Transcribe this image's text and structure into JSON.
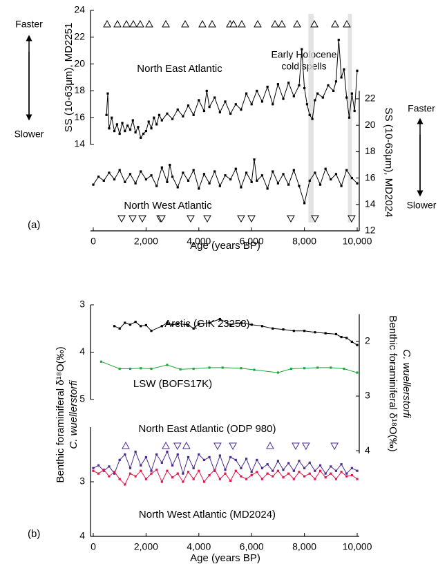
{
  "chart_data": [
    {
      "type": "line",
      "panel_label": "(a)",
      "xlabel": "Age (years BP)",
      "xlim": [
        0,
        10000
      ],
      "xticks": [
        0,
        {
          "value": 2000,
          "label": "2,000"
        },
        {
          "value": 4000,
          "label": "4,000"
        },
        {
          "value": 6000,
          "label": "6,000"
        },
        {
          "value": 8000,
          "label": "8,000"
        },
        {
          "value": 10000,
          "label": "10,000"
        }
      ],
      "ylim": [
        14,
        24
      ],
      "yticks": [
        14,
        16,
        18,
        20,
        22,
        24
      ],
      "ylabel": [
        "SS (10-63μm), MD2251"
      ],
      "y2lim": [
        12,
        22.6
      ],
      "y2ticks": [
        12,
        14,
        16,
        18,
        20,
        22
      ],
      "y2label": [
        "SS (10-63μm), MD2024"
      ],
      "arrows_left": [
        "Faster",
        "Slower"
      ],
      "arrows_right": [
        "Faster",
        "Slower"
      ],
      "annotations": [
        "Early Holocene",
        "cold spells"
      ],
      "shaded": [
        [
          8150,
          8350
        ],
        [
          9650,
          9800
        ]
      ],
      "series": [
        {
          "name": "North East Atlantic",
          "color": "#000000",
          "x": [
            500,
            550,
            600,
            700,
            800,
            900,
            1000,
            1100,
            1200,
            1300,
            1400,
            1500,
            1600,
            1700,
            1800,
            1900,
            2000,
            2100,
            2200,
            2300,
            2400,
            2500,
            2600,
            2800,
            3000,
            3200,
            3400,
            3600,
            3800,
            4000,
            4200,
            4300,
            4400,
            4600,
            4800,
            5000,
            5200,
            5400,
            5600,
            5800,
            6000,
            6200,
            6400,
            6600,
            6800,
            7000,
            7200,
            7400,
            7600,
            7800,
            7900,
            8000,
            8100,
            8200,
            8300,
            8400,
            8500,
            8700,
            8900,
            9100,
            9200,
            9300,
            9400,
            9500,
            9600,
            9700,
            9800,
            9900,
            10000
          ],
          "values": [
            16.2,
            17.8,
            15.2,
            16.0,
            15.0,
            15.5,
            14.8,
            15.6,
            15.0,
            15.4,
            15.1,
            15.8,
            14.9,
            15.3,
            14.5,
            14.8,
            15.0,
            15.7,
            15.2,
            16.0,
            15.5,
            16.2,
            15.8,
            16.3,
            15.9,
            16.6,
            16.1,
            16.9,
            16.2,
            17.3,
            16.5,
            18.0,
            16.8,
            17.5,
            16.4,
            17.2,
            16.3,
            17.0,
            16.6,
            17.8,
            17.0,
            18.0,
            17.2,
            18.3,
            17.0,
            18.5,
            17.4,
            18.6,
            17.6,
            18.4,
            21.1,
            18.2,
            17.0,
            16.2,
            15.9,
            17.3,
            17.8,
            17.5,
            18.4,
            18.0,
            18.7,
            21.8,
            19.0,
            19.6,
            17.5,
            16.0,
            17.8,
            16.5,
            19.5
          ]
        },
        {
          "name": "North West Atlantic",
          "color": "#000000",
          "axis": "y2",
          "x": [
            0,
            200,
            400,
            600,
            800,
            1000,
            1200,
            1400,
            1600,
            1800,
            2000,
            2200,
            2400,
            2600,
            2800,
            2900,
            3000,
            3200,
            3400,
            3600,
            3800,
            4000,
            4200,
            4400,
            4600,
            4800,
            5000,
            5200,
            5400,
            5600,
            5800,
            6000,
            6100,
            6200,
            6400,
            6600,
            6800,
            7000,
            7200,
            7400,
            7600,
            7800,
            8000,
            8200,
            8400,
            8600,
            8800,
            9000,
            9200,
            9400,
            9600,
            9800,
            10000
          ],
          "values": [
            15.5,
            16.1,
            15.8,
            16.4,
            15.9,
            16.6,
            15.7,
            16.3,
            15.6,
            16.5,
            15.9,
            16.2,
            15.4,
            16.8,
            15.7,
            17.0,
            16.1,
            15.3,
            16.4,
            15.8,
            16.6,
            15.2,
            16.3,
            15.6,
            16.5,
            15.4,
            16.2,
            15.9,
            16.7,
            15.3,
            16.4,
            15.7,
            17.4,
            15.8,
            16.2,
            15.2,
            16.5,
            15.6,
            16.3,
            15.5,
            16.6,
            15.4,
            14.1,
            15.8,
            16.4,
            15.5,
            16.7,
            15.9,
            16.3,
            15.4,
            16.6,
            16.0,
            15.6
          ]
        }
      ],
      "event_markers": [
        {
          "symbol": "up",
          "color": "#000000",
          "x": [
            524,
            916,
            1257,
            1518,
            1780,
            2120,
            2749,
            3482,
            4136,
            4503,
            5183,
            5314,
            5628,
            6230,
            6885,
            7147,
            7723,
            8377,
            9162,
            9607
          ]
        },
        {
          "symbol": "down",
          "color": "#000000",
          "x": [
            1073,
            1492,
            1859,
            2539,
            2592,
            3691,
            4319,
            5602,
            5995,
            7487,
            8403,
            9790
          ]
        }
      ]
    },
    {
      "type": "line",
      "panel_label": "(b)",
      "xlabel": "Age (years BP)",
      "inverted": true,
      "xlim": [
        0,
        10000
      ],
      "xticks": [
        0,
        {
          "value": 2000,
          "label": "2,000"
        },
        {
          "value": 4000,
          "label": "4,000"
        },
        {
          "value": 6000,
          "label": "6,000"
        },
        {
          "value": 8000,
          "label": "8,000"
        },
        {
          "value": 10000,
          "label": "10,000"
        }
      ],
      "ylim": [
        2,
        4
      ],
      "yticks": [
        3,
        4
      ],
      "y3lim": [
        3,
        5
      ],
      "y3ticks": [
        3,
        4,
        5
      ],
      "ylabel": [
        "Benthic foraminiferal δ¹⁸O(‰)",
        "C. wuellerstorfi"
      ],
      "y2lim": [
        1.5,
        4.05
      ],
      "y2ticks": [
        2,
        3,
        4
      ],
      "y2label": [
        "Benthic foraminiferal δ¹⁸O(‰)",
        "C. wuellerstorfi"
      ],
      "series": [
        {
          "name": "Arctic (GIK 23258)",
          "color": "#000000",
          "axis": "y3",
          "x": [
            800,
            1000,
            1200,
            1400,
            1600,
            1800,
            2000,
            2200,
            2600,
            2800,
            3000,
            3200,
            3600,
            3800,
            4000,
            4400,
            4800,
            5200,
            5600,
            6000,
            6400,
            6800,
            7200,
            7600,
            8000,
            8400,
            8800,
            9200,
            9400,
            9600,
            9800,
            10000
          ],
          "values": [
            3.45,
            3.5,
            3.38,
            3.42,
            3.36,
            3.45,
            3.43,
            3.55,
            3.45,
            3.38,
            3.42,
            3.4,
            3.42,
            3.5,
            3.4,
            3.38,
            3.3,
            3.42,
            3.38,
            3.42,
            3.45,
            3.5,
            3.52,
            3.55,
            3.55,
            3.58,
            3.6,
            3.62,
            3.68,
            3.7,
            3.78,
            3.85
          ]
        },
        {
          "name": "LSW (BOFS17K)",
          "color": "#1fa83a",
          "axis": "y2",
          "x": [
            300,
            1000,
            1400,
            1800,
            2200,
            2800,
            3300,
            3800,
            4400,
            4900,
            5600,
            6100,
            7000,
            7500,
            8000,
            8500,
            9000,
            9500,
            10000
          ],
          "values": [
            2.37,
            2.5,
            2.5,
            2.49,
            2.5,
            2.43,
            2.51,
            2.5,
            2.48,
            2.48,
            2.49,
            2.52,
            2.57,
            2.5,
            2.49,
            2.48,
            2.48,
            2.5,
            2.57
          ]
        },
        {
          "name": "North East Atlantic (ODP 980)",
          "color": "#4b2a8c",
          "x": [
            0,
            200,
            400,
            600,
            800,
            1000,
            1200,
            1400,
            1600,
            1800,
            2000,
            2200,
            2400,
            2600,
            2800,
            3000,
            3200,
            3400,
            3600,
            3800,
            4000,
            4200,
            4400,
            4600,
            4800,
            5000,
            5200,
            5400,
            5600,
            5800,
            6000,
            6200,
            6400,
            6600,
            6800,
            7000,
            7200,
            7400,
            7600,
            7800,
            8000,
            8200,
            8400,
            8600,
            8800,
            9000,
            9200,
            9400,
            9600,
            9800,
            10000
          ],
          "values": [
            2.75,
            2.7,
            2.8,
            2.72,
            2.85,
            2.6,
            2.5,
            2.75,
            2.45,
            2.7,
            2.55,
            2.8,
            2.5,
            2.65,
            2.45,
            2.7,
            2.5,
            2.85,
            2.55,
            2.75,
            2.5,
            2.6,
            2.55,
            2.8,
            2.52,
            2.78,
            2.55,
            2.6,
            2.75,
            2.58,
            2.82,
            2.6,
            2.75,
            2.68,
            2.8,
            2.62,
            2.78,
            2.66,
            2.8,
            2.62,
            2.75,
            2.65,
            2.8,
            2.7,
            2.85,
            2.72,
            2.8,
            2.68,
            2.85,
            2.75,
            2.8
          ]
        },
        {
          "name": "North West Atlantic (MD2024)",
          "color": "#e0194b",
          "x": [
            0,
            200,
            400,
            600,
            800,
            1000,
            1200,
            1400,
            1600,
            1800,
            2000,
            2200,
            2400,
            2600,
            2800,
            3000,
            3200,
            3400,
            3600,
            3800,
            4000,
            4200,
            4400,
            4600,
            4800,
            5000,
            5200,
            5400,
            5600,
            5800,
            6000,
            6200,
            6400,
            6600,
            6800,
            7000,
            7200,
            7400,
            7600,
            7800,
            8000,
            8200,
            8400,
            8600,
            8800,
            9000,
            9200,
            9400,
            9600,
            9800,
            10000
          ],
          "values": [
            2.8,
            2.85,
            2.78,
            2.9,
            2.82,
            2.95,
            3.05,
            2.85,
            2.9,
            2.8,
            2.95,
            2.85,
            2.78,
            3.0,
            2.8,
            2.92,
            2.85,
            3.0,
            2.82,
            2.95,
            2.8,
            3.0,
            2.88,
            2.78,
            2.95,
            2.85,
            2.98,
            2.8,
            2.9,
            2.95,
            2.88,
            2.82,
            2.95,
            2.85,
            2.9,
            2.8,
            2.92,
            2.85,
            2.95,
            2.82,
            2.9,
            2.85,
            2.95,
            2.8,
            2.92,
            2.85,
            2.95,
            2.82,
            2.9,
            2.88,
            2.95
          ]
        }
      ],
      "event_markers": [
        {
          "symbol": "up",
          "color": "#4b2a8c",
          "x": [
            1230,
            2750,
            3530,
            6700
          ]
        },
        {
          "symbol": "down",
          "color": "#4b2a8c",
          "x": [
            3190,
            4710,
            5290,
            7670,
            8060,
            9140
          ]
        }
      ]
    }
  ]
}
